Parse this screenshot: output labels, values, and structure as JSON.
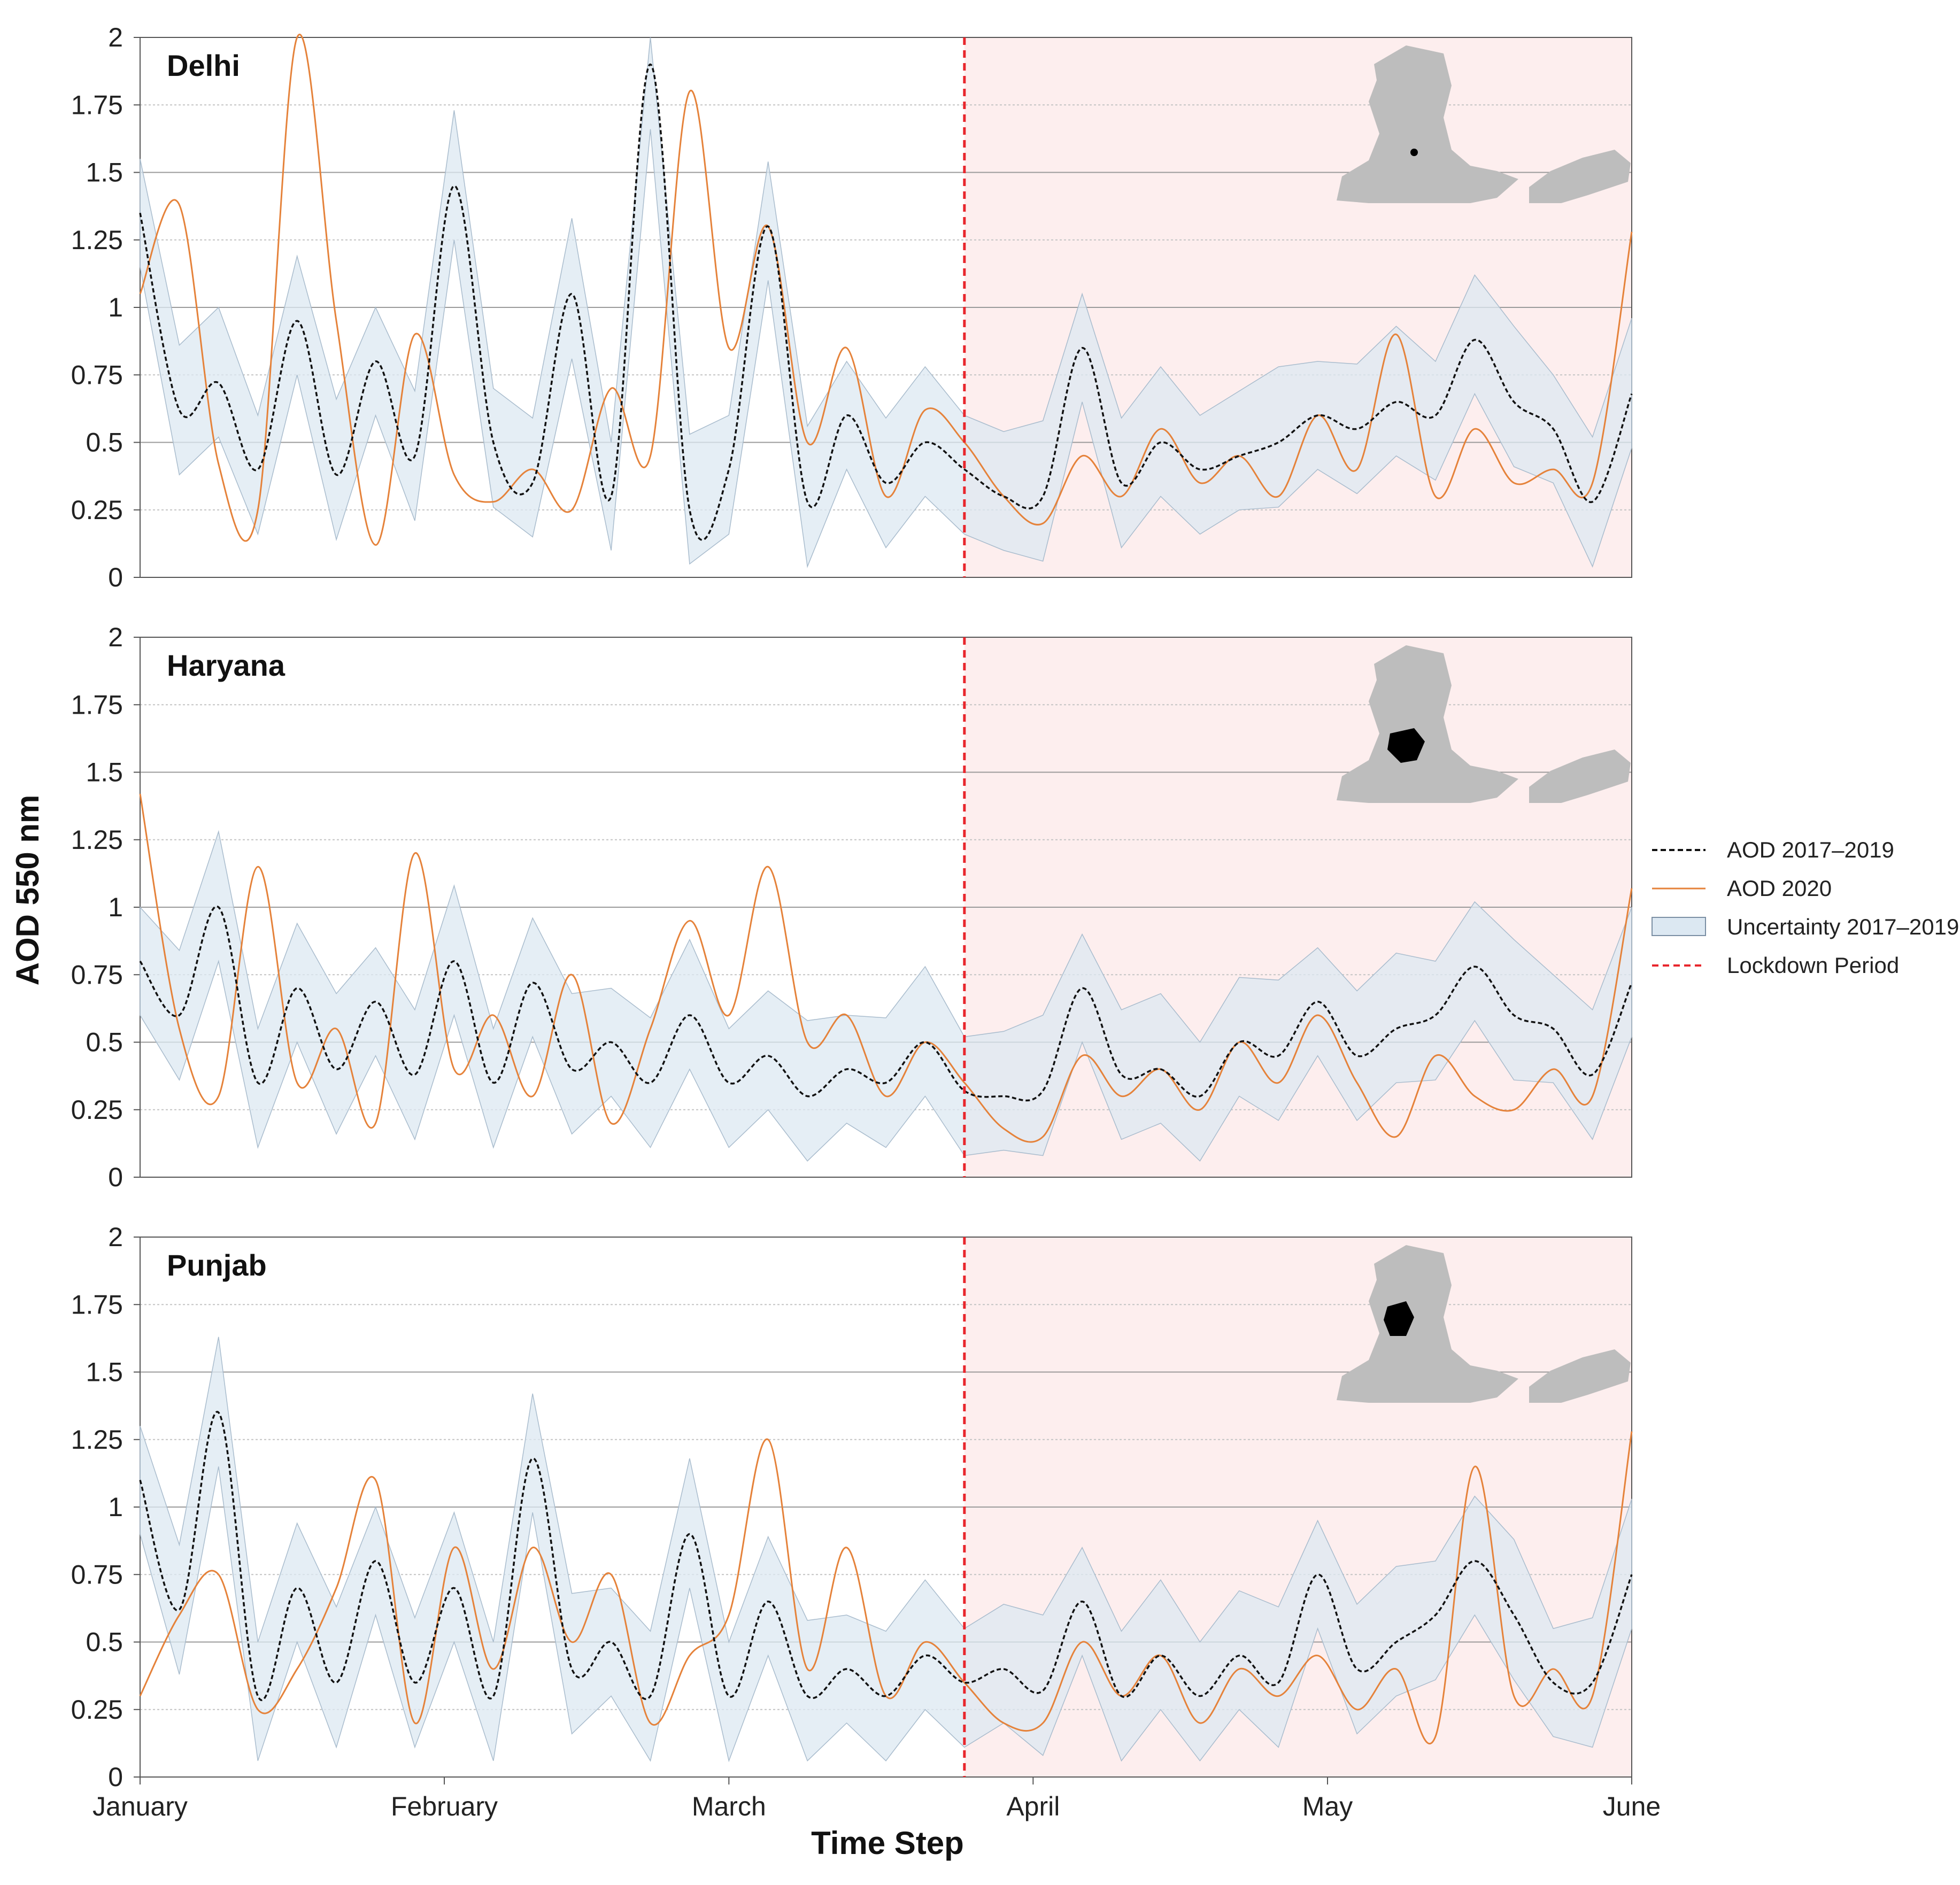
{
  "chart_data": {
    "type": "line",
    "ylabel": "AOD 550 nm",
    "xlabel": "Time Step",
    "ylim": [
      0,
      2
    ],
    "yticks": [
      0,
      0.25,
      0.5,
      0.75,
      1,
      1.25,
      1.5,
      1.75,
      2
    ],
    "ytick_labels": [
      "0",
      "0.25",
      "0.5",
      "0.75",
      "1",
      "1.25",
      "1.5",
      "1.75",
      "2"
    ],
    "xlim": [
      "2020-01-01",
      "2020-06-01"
    ],
    "x_months": [
      "January",
      "February",
      "March",
      "April",
      "May",
      "June"
    ],
    "x_month_days": [
      0,
      31,
      60,
      91,
      121,
      152
    ],
    "lockdown_start": "2020-03-25",
    "lockdown_start_day": 84,
    "legend": {
      "placement": "right",
      "entries": [
        "AOD 2017–2019",
        "AOD 2020",
        "Uncertainty 2017–2019",
        "Lockdown Period"
      ]
    },
    "colors": {
      "aod_2017_2019": "#111111",
      "aod_2020": "#e5823a",
      "uncertainty": "#dce8f2",
      "lockdown_line": "#e8262c",
      "lockdown_fill": "#fdeeee",
      "map": "#bdbdbd",
      "region": "#000000"
    },
    "panels": [
      {
        "title": "Delhi",
        "series": [
          {
            "name": "AOD 2017–2019",
            "x": [
              0,
              4,
              8,
              12,
              16,
              20,
              24,
              28,
              32,
              36,
              40,
              44,
              48,
              52,
              56,
              60,
              64,
              68,
              72,
              76,
              80,
              84,
              88,
              92,
              96,
              100,
              104,
              108,
              112,
              116,
              120,
              124,
              128,
              132,
              136,
              140,
              144,
              148,
              152
            ],
            "y": [
              1.35,
              0.62,
              0.72,
              0.4,
              0.95,
              0.38,
              0.8,
              0.45,
              1.45,
              0.5,
              0.35,
              1.05,
              0.3,
              1.9,
              0.25,
              0.4,
              1.3,
              0.28,
              0.6,
              0.35,
              0.5,
              0.4,
              0.3,
              0.3,
              0.85,
              0.35,
              0.5,
              0.4,
              0.45,
              0.5,
              0.6,
              0.55,
              0.65,
              0.6,
              0.88,
              0.65,
              0.55,
              0.28,
              0.68
            ]
          },
          {
            "name": "AOD 2020",
            "x": [
              0,
              4,
              8,
              12,
              16,
              20,
              24,
              28,
              32,
              36,
              40,
              44,
              48,
              52,
              56,
              60,
              64,
              68,
              72,
              76,
              80,
              84,
              88,
              92,
              96,
              100,
              104,
              108,
              112,
              116,
              120,
              124,
              128,
              132,
              136,
              140,
              144,
              148,
              152
            ],
            "y": [
              1.05,
              1.38,
              0.42,
              0.25,
              2.0,
              0.95,
              0.12,
              0.9,
              0.38,
              0.28,
              0.4,
              0.25,
              0.7,
              0.45,
              1.8,
              0.85,
              1.3,
              0.5,
              0.85,
              0.3,
              0.62,
              0.5,
              0.3,
              0.2,
              0.45,
              0.3,
              0.55,
              0.35,
              0.45,
              0.3,
              0.6,
              0.4,
              0.9,
              0.3,
              0.55,
              0.35,
              0.4,
              0.35,
              1.28
            ]
          }
        ]
      },
      {
        "title": "Haryana",
        "series": [
          {
            "name": "AOD 2017–2019",
            "x": [
              0,
              4,
              8,
              12,
              16,
              20,
              24,
              28,
              32,
              36,
              40,
              44,
              48,
              52,
              56,
              60,
              64,
              68,
              72,
              76,
              80,
              84,
              88,
              92,
              96,
              100,
              104,
              108,
              112,
              116,
              120,
              124,
              128,
              132,
              136,
              140,
              144,
              148,
              152
            ],
            "y": [
              0.8,
              0.6,
              1.0,
              0.35,
              0.7,
              0.4,
              0.65,
              0.38,
              0.8,
              0.35,
              0.72,
              0.4,
              0.5,
              0.35,
              0.6,
              0.35,
              0.45,
              0.3,
              0.4,
              0.35,
              0.5,
              0.32,
              0.3,
              0.32,
              0.7,
              0.38,
              0.4,
              0.3,
              0.5,
              0.45,
              0.65,
              0.45,
              0.55,
              0.6,
              0.78,
              0.6,
              0.55,
              0.38,
              0.72
            ]
          },
          {
            "name": "AOD 2020",
            "x": [
              0,
              4,
              8,
              12,
              16,
              20,
              24,
              28,
              32,
              36,
              40,
              44,
              48,
              52,
              56,
              60,
              64,
              68,
              72,
              76,
              80,
              84,
              88,
              92,
              96,
              100,
              104,
              108,
              112,
              116,
              120,
              124,
              128,
              132,
              136,
              140,
              144,
              148,
              152
            ],
            "y": [
              1.42,
              0.55,
              0.3,
              1.15,
              0.35,
              0.55,
              0.2,
              1.2,
              0.4,
              0.6,
              0.3,
              0.75,
              0.2,
              0.55,
              0.95,
              0.6,
              1.15,
              0.5,
              0.6,
              0.3,
              0.5,
              0.35,
              0.18,
              0.15,
              0.45,
              0.3,
              0.4,
              0.25,
              0.5,
              0.35,
              0.6,
              0.35,
              0.15,
              0.45,
              0.3,
              0.25,
              0.4,
              0.3,
              1.07
            ]
          }
        ]
      },
      {
        "title": "Punjab",
        "series": [
          {
            "name": "AOD 2017–2019",
            "x": [
              0,
              4,
              8,
              12,
              16,
              20,
              24,
              28,
              32,
              36,
              40,
              44,
              48,
              52,
              56,
              60,
              64,
              68,
              72,
              76,
              80,
              84,
              88,
              92,
              96,
              100,
              104,
              108,
              112,
              116,
              120,
              124,
              128,
              132,
              136,
              140,
              144,
              148,
              152
            ],
            "y": [
              1.1,
              0.62,
              1.35,
              0.3,
              0.7,
              0.35,
              0.8,
              0.35,
              0.7,
              0.3,
              1.18,
              0.4,
              0.5,
              0.3,
              0.9,
              0.3,
              0.65,
              0.3,
              0.4,
              0.3,
              0.45,
              0.35,
              0.4,
              0.32,
              0.65,
              0.3,
              0.45,
              0.3,
              0.45,
              0.35,
              0.75,
              0.4,
              0.5,
              0.6,
              0.8,
              0.6,
              0.35,
              0.35,
              0.75
            ]
          },
          {
            "name": "AOD 2020",
            "x": [
              0,
              4,
              8,
              12,
              16,
              20,
              24,
              28,
              32,
              36,
              40,
              44,
              48,
              52,
              56,
              60,
              64,
              68,
              72,
              76,
              80,
              84,
              88,
              92,
              96,
              100,
              104,
              108,
              112,
              116,
              120,
              124,
              128,
              132,
              136,
              140,
              144,
              148,
              152
            ],
            "y": [
              0.3,
              0.6,
              0.75,
              0.25,
              0.4,
              0.7,
              1.1,
              0.2,
              0.85,
              0.4,
              0.85,
              0.5,
              0.75,
              0.2,
              0.45,
              0.6,
              1.25,
              0.4,
              0.85,
              0.3,
              0.5,
              0.35,
              0.2,
              0.2,
              0.5,
              0.3,
              0.45,
              0.2,
              0.4,
              0.3,
              0.45,
              0.25,
              0.4,
              0.15,
              1.15,
              0.3,
              0.4,
              0.3,
              1.28
            ]
          }
        ]
      }
    ]
  }
}
